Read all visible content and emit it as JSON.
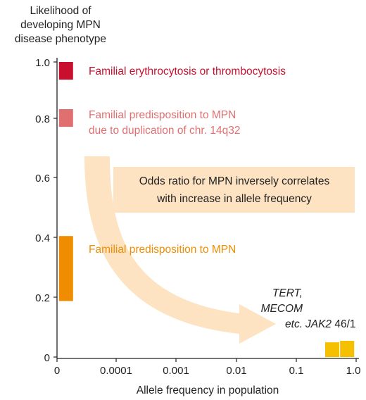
{
  "chart_data": {
    "type": "bar",
    "ylabel_lines": [
      "Likelihood of",
      "developing MPN",
      "disease phenotype"
    ],
    "xlabel": "Allele frequency in population",
    "x_ticks": [
      "0",
      "0.0001",
      "0.001",
      "0.01",
      "0.1",
      "1.0"
    ],
    "y_ticks": [
      "0",
      "0.2",
      "0.4",
      "0.6",
      "0.8",
      "1.0"
    ],
    "ylim": [
      0,
      1.0
    ],
    "grid": false,
    "bars": [
      {
        "x_tick_position": 0.15,
        "y_low": 0.94,
        "y_high": 1.0,
        "color": "#c8102e"
      },
      {
        "x_tick_position": 0.15,
        "y_low": 0.78,
        "y_high": 0.84,
        "color": "#e07070"
      },
      {
        "x_tick_position": 0.15,
        "y_low": 0.19,
        "y_high": 0.41,
        "color": "#f08c00"
      },
      {
        "x_tick_position": 4.6,
        "y_low": 0.0,
        "y_high": 0.05,
        "color": "#f5c000"
      },
      {
        "x_tick_position": 4.85,
        "y_low": 0.0,
        "y_high": 0.055,
        "color": "#f5c000"
      }
    ],
    "annotations": [
      {
        "text": "Familial erythrocytosis or thrombocytosis",
        "color": "#c8102e"
      },
      {
        "text_lines": [
          "Familial predisposition to MPN",
          "due to duplication of chr. 14q32"
        ],
        "color": "#e07070"
      },
      {
        "text": "Familial predisposition to MPN",
        "color": "#f08c00"
      },
      {
        "text_lines": [
          "TERT,",
          "MECOM",
          "etc."
        ],
        "color": "#222222"
      },
      {
        "text_italic": "JAK2",
        "text": " 46/1",
        "color": "#222222"
      }
    ],
    "callout": {
      "text_lines": [
        "Odds ratio for MPN inversely correlates",
        "with increase in allele frequency"
      ],
      "box_color": "#fde3c2",
      "arrow_color": "#fde3c2"
    }
  }
}
